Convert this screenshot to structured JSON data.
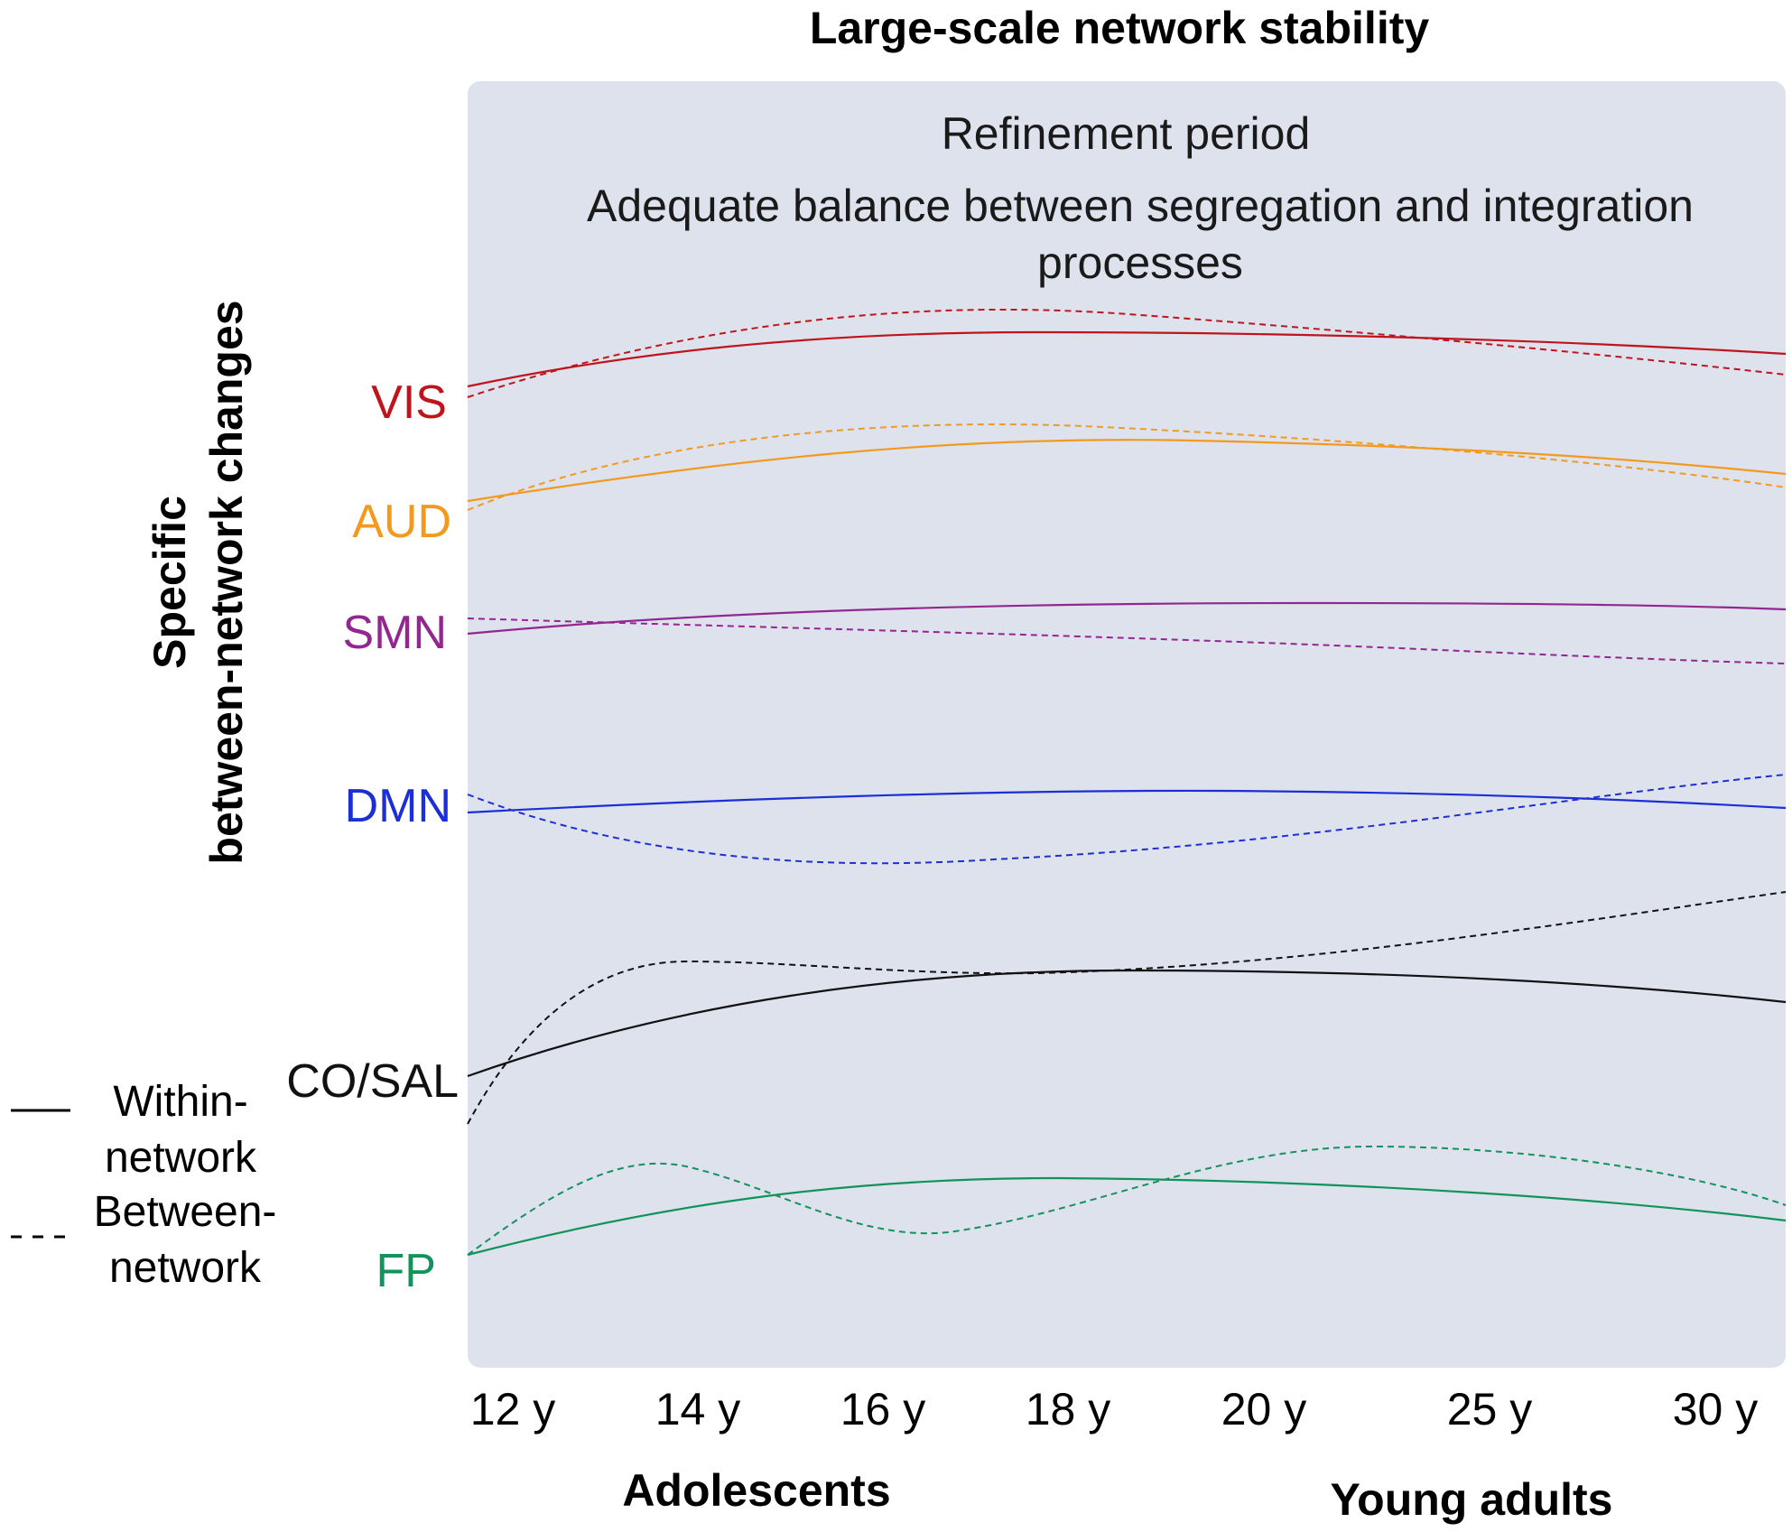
{
  "title": "Large-scale network stability",
  "panel": {
    "line1": "Refinement period",
    "line2": "Adequate balance between segregation and integration",
    "line3": "processes",
    "background": "#dde2ed"
  },
  "y_axis": {
    "line1": "Specific",
    "line2": "between-network changes"
  },
  "x_axis": {
    "ticks": [
      "12 y",
      "14 y",
      "16 y",
      "18 y",
      "20 y",
      "25 y",
      "30 y"
    ],
    "period_left": "Adolescents",
    "period_right": "Young adults"
  },
  "legend": {
    "within_line1": "Within-",
    "within_line2": "network",
    "between_line1": "Between-",
    "between_line2": "network"
  },
  "networks": [
    {
      "id": "vis",
      "label": "VIS",
      "color": "#c0141c"
    },
    {
      "id": "aud",
      "label": "AUD",
      "color": "#f39a1e"
    },
    {
      "id": "smn",
      "label": "SMN",
      "color": "#92278f"
    },
    {
      "id": "dmn",
      "label": "DMN",
      "color": "#1c2fd6"
    },
    {
      "id": "cosal",
      "label": "CO/SAL",
      "color": "#111111"
    },
    {
      "id": "fp",
      "label": "FP",
      "color": "#12935a"
    }
  ]
}
